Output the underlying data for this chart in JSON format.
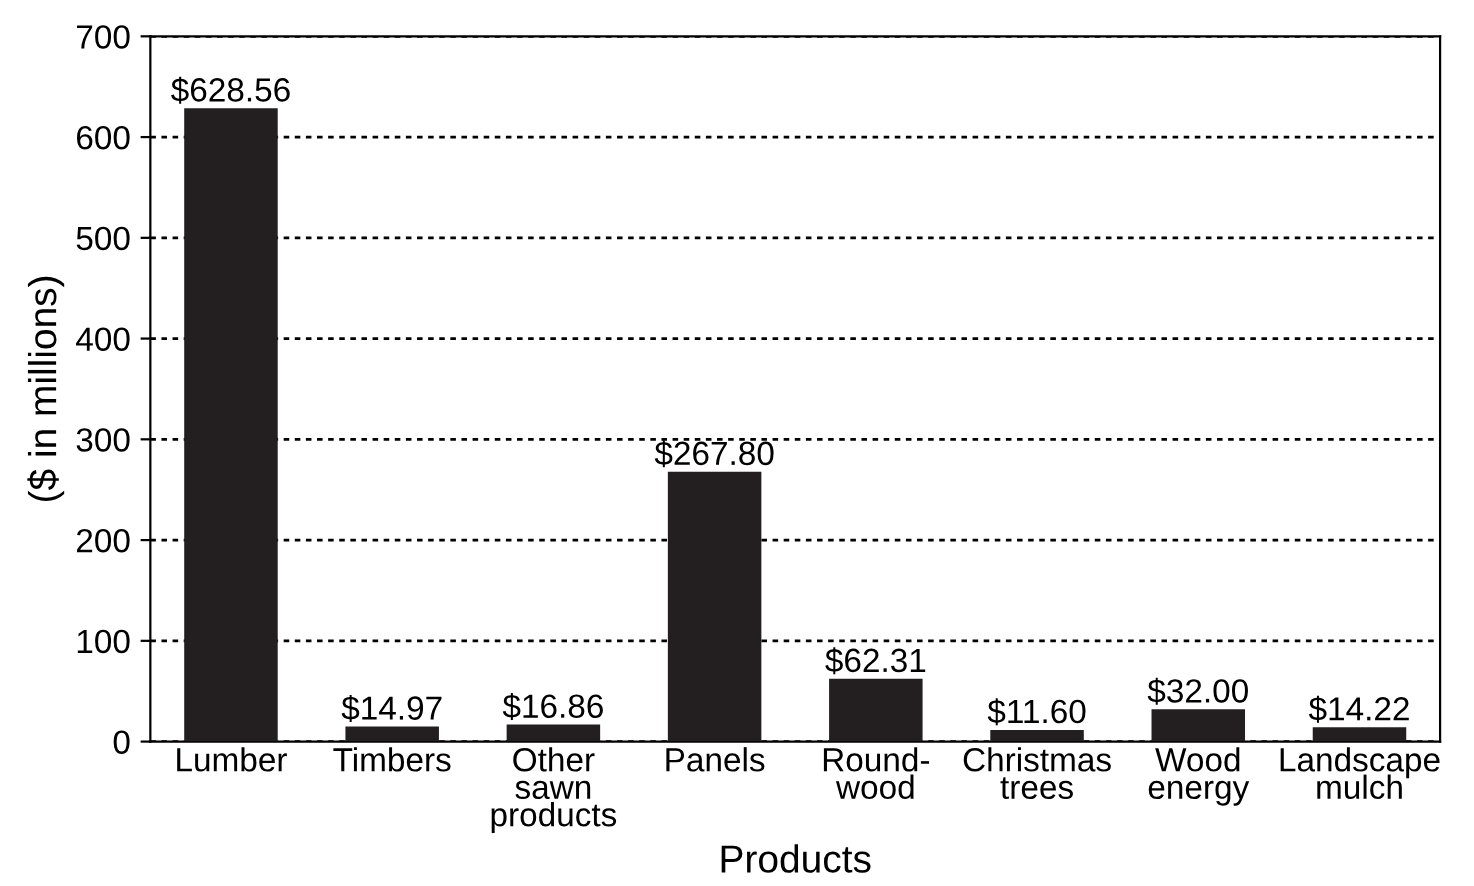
{
  "chart_data": {
    "type": "bar",
    "xlabel": "Products",
    "ylabel": "($ in millions)",
    "categories": [
      "Lumber",
      "Timbers",
      "Other\nsawn\nproducts",
      "Panels",
      "Round-\nwood",
      "Christmas\ntrees",
      "Wood\nenergy",
      "Landscape\nmulch"
    ],
    "values": [
      628.56,
      14.97,
      16.86,
      267.8,
      62.31,
      11.6,
      32.0,
      14.22
    ],
    "value_labels": [
      "$628.56",
      "$14.97",
      "$16.86",
      "$267.80",
      "$62.31",
      "$11.60",
      "$32.00",
      "$14.22"
    ],
    "color": "#231f20",
    "ylim": [
      0,
      700
    ],
    "yticks": [
      0,
      100,
      200,
      300,
      400,
      500,
      600,
      700
    ],
    "grid": "y"
  }
}
